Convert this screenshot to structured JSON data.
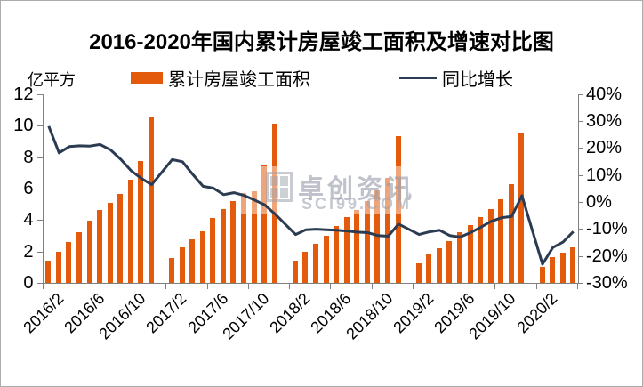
{
  "title": "2016-2020年国内累计房屋竣工面积及增速对比图",
  "unit_label": "亿平方",
  "legend": {
    "bar_label": "累计房屋竣工面积",
    "line_label": "同比增长"
  },
  "watermark": {
    "brand": "卓创资讯",
    "site": "SCI99.COM"
  },
  "colors": {
    "bar": "#E45A0D",
    "line": "#2B3C52",
    "axis": "#808080",
    "text": "#000000"
  },
  "chart_data": {
    "type": "bar+line",
    "title": "2016-2020年国内累计房屋竣工面积及增速对比图",
    "legend_position": "top",
    "grid": false,
    "left_axis": {
      "label": "亿平方",
      "min": 0,
      "max": 12,
      "ticks": [
        0,
        2,
        4,
        6,
        8,
        10,
        12
      ]
    },
    "right_axis": {
      "min": -30,
      "max": 40,
      "ticks_pct": [
        40,
        30,
        20,
        10,
        0,
        -10,
        -20,
        -30
      ]
    },
    "x_tick_labels": [
      "2016/2",
      "2016/6",
      "2016/10",
      "2017/2",
      "2017/6",
      "2017/10",
      "2018/2",
      "2018/6",
      "2018/10",
      "2019/2",
      "2019/6",
      "2019/10",
      "2020/2"
    ],
    "series": [
      {
        "name": "累计房屋竣工面积",
        "type": "bar",
        "axis": "left",
        "unit": "亿平方"
      },
      {
        "name": "同比增长",
        "type": "line",
        "axis": "right",
        "unit": "%"
      }
    ],
    "points": [
      {
        "label": "2016/2",
        "bar": 1.4,
        "line": 28.2
      },
      {
        "label": "2016/3",
        "bar": 2.0,
        "line": 18.3
      },
      {
        "label": "2016/4",
        "bar": 2.6,
        "line": 20.6
      },
      {
        "label": "2016/5",
        "bar": 3.21,
        "line": 20.9
      },
      {
        "label": "2016/6",
        "bar": 3.98,
        "line": 20.8
      },
      {
        "label": "2016/7",
        "bar": 4.64,
        "line": 21.4
      },
      {
        "label": "2016/8",
        "bar": 5.1,
        "line": 19.4
      },
      {
        "label": "2016/9",
        "bar": 5.67,
        "line": 15.9
      },
      {
        "label": "2016/10",
        "bar": 6.56,
        "line": 11.7
      },
      {
        "label": "2016/11",
        "bar": 7.75,
        "line": 8.8
      },
      {
        "label": "2016/12",
        "bar": 10.6,
        "line": 6.5
      },
      {
        "label": "2017/1",
        "bar": null,
        "line": null
      },
      {
        "label": "2017/2",
        "bar": 1.57,
        "line": 15.8
      },
      {
        "label": "2017/3",
        "bar": 2.25,
        "line": 15.0
      },
      {
        "label": "2017/4",
        "bar": 2.77,
        "line": 10.3
      },
      {
        "label": "2017/5",
        "bar": 3.26,
        "line": 5.9
      },
      {
        "label": "2017/6",
        "bar": 4.13,
        "line": 5.2
      },
      {
        "label": "2017/7",
        "bar": 4.68,
        "line": 2.8
      },
      {
        "label": "2017/8",
        "bar": 5.2,
        "line": 3.5
      },
      {
        "label": "2017/9",
        "bar": 5.73,
        "line": 2.5
      },
      {
        "label": "2017/10",
        "bar": 5.85,
        "line": 0.8
      },
      {
        "label": "2017/11",
        "bar": 7.47,
        "line": -1.0
      },
      {
        "label": "2017/12",
        "bar": 10.14,
        "line": -4.4
      },
      {
        "label": "2018/1",
        "bar": null,
        "line": null
      },
      {
        "label": "2018/2",
        "bar": 1.43,
        "line": -12.0
      },
      {
        "label": "2018/3",
        "bar": 2.0,
        "line": -10.2
      },
      {
        "label": "2018/4",
        "bar": 2.47,
        "line": -10.0
      },
      {
        "label": "2018/5",
        "bar": 3.0,
        "line": -10.2
      },
      {
        "label": "2018/6",
        "bar": 3.6,
        "line": -10.4
      },
      {
        "label": "2018/7",
        "bar": 4.17,
        "line": -10.7
      },
      {
        "label": "2018/8",
        "bar": 4.64,
        "line": -11.1
      },
      {
        "label": "2018/9",
        "bar": 5.2,
        "line": -11.3
      },
      {
        "label": "2018/10",
        "bar": 5.86,
        "line": -12.4
      },
      {
        "label": "2018/11",
        "bar": 6.67,
        "line": -12.6
      },
      {
        "label": "2018/12",
        "bar": 9.31,
        "line": -8.1
      },
      {
        "label": "2019/1",
        "bar": null,
        "line": null
      },
      {
        "label": "2019/2",
        "bar": 1.24,
        "line": -12.0
      },
      {
        "label": "2019/3",
        "bar": 1.81,
        "line": -11.0
      },
      {
        "label": "2019/4",
        "bar": 2.19,
        "line": -10.4
      },
      {
        "label": "2019/5",
        "bar": 2.66,
        "line": -12.4
      },
      {
        "label": "2019/6",
        "bar": 3.22,
        "line": -12.9
      },
      {
        "label": "2019/7",
        "bar": 3.69,
        "line": -11.3
      },
      {
        "label": "2019/8",
        "bar": 4.17,
        "line": -9.3
      },
      {
        "label": "2019/9",
        "bar": 4.68,
        "line": -7.1
      },
      {
        "label": "2019/10",
        "bar": 5.33,
        "line": -5.8
      },
      {
        "label": "2019/11",
        "bar": 6.28,
        "line": -5.3
      },
      {
        "label": "2019/12",
        "bar": 9.58,
        "line": 2.4
      },
      {
        "label": "2020/1",
        "bar": null,
        "line": null
      },
      {
        "label": "2020/2",
        "bar": 1.0,
        "line": -23.0
      },
      {
        "label": "2020/3",
        "bar": 1.62,
        "line": -16.8
      },
      {
        "label": "2020/4",
        "bar": 1.91,
        "line": -14.8
      },
      {
        "label": "2020/5",
        "bar": 2.28,
        "line": -10.9
      }
    ]
  }
}
